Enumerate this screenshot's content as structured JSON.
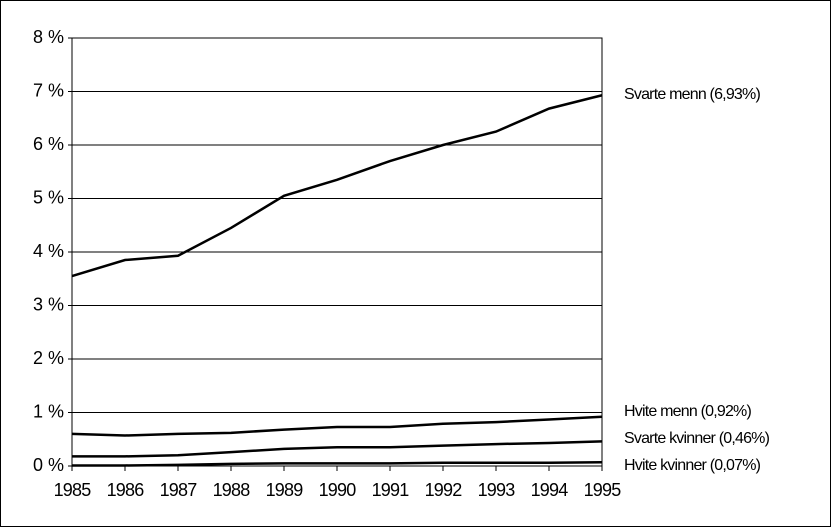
{
  "chart_data": {
    "type": "line",
    "x": [
      1985,
      1986,
      1987,
      1988,
      1989,
      1990,
      1991,
      1992,
      1993,
      1994,
      1995
    ],
    "xlim": [
      1985,
      1995
    ],
    "ylim": [
      0,
      8
    ],
    "yticks": [
      {
        "value": 0,
        "label": "0 %"
      },
      {
        "value": 1,
        "label": "1 %"
      },
      {
        "value": 2,
        "label": "2 %"
      },
      {
        "value": 3,
        "label": "3 %"
      },
      {
        "value": 4,
        "label": "4 %"
      },
      {
        "value": 5,
        "label": "5 %"
      },
      {
        "value": 6,
        "label": "6 %"
      },
      {
        "value": 7,
        "label": "7 %"
      },
      {
        "value": 8,
        "label": "8 %"
      }
    ],
    "grid": true,
    "series": [
      {
        "name": "Svarte menn (6,93%)",
        "color": "#000000",
        "values": [
          3.55,
          3.85,
          3.93,
          4.45,
          5.05,
          5.35,
          5.7,
          6.0,
          6.25,
          6.68,
          6.93
        ]
      },
      {
        "name": "Hvite menn (0,92%)",
        "color": "#000000",
        "values": [
          0.6,
          0.57,
          0.6,
          0.62,
          0.68,
          0.73,
          0.73,
          0.79,
          0.82,
          0.87,
          0.92
        ]
      },
      {
        "name": "Svarte kvinner (0,46%)",
        "color": "#000000",
        "values": [
          0.18,
          0.18,
          0.2,
          0.26,
          0.32,
          0.35,
          0.35,
          0.38,
          0.41,
          0.43,
          0.46
        ]
      },
      {
        "name": "Hvite kvinner (0,07%)",
        "color": "#000000",
        "values": [
          0.01,
          0.01,
          0.02,
          0.04,
          0.05,
          0.05,
          0.05,
          0.06,
          0.06,
          0.06,
          0.07
        ]
      }
    ]
  }
}
